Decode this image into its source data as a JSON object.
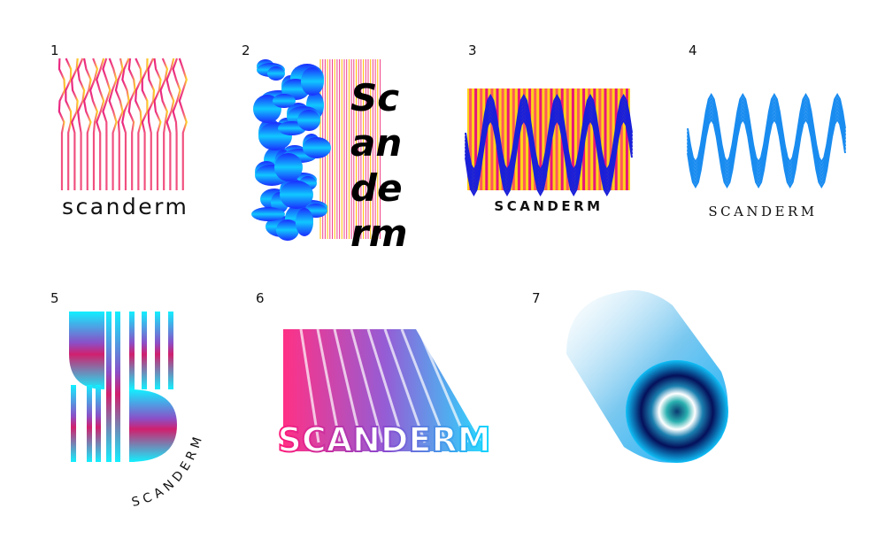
{
  "items": [
    {
      "number": "1",
      "wordmark": "scanderm"
    },
    {
      "number": "2",
      "wordmark_lines": [
        "Sc",
        "an",
        "de",
        "rm"
      ]
    },
    {
      "number": "3",
      "wordmark": "SCANDERM"
    },
    {
      "number": "4",
      "wordmark": "SCANDERM"
    },
    {
      "number": "5",
      "wordmark": "SCANDERM"
    },
    {
      "number": "6",
      "wordmark": "SCANDERM"
    },
    {
      "number": "7"
    }
  ]
}
